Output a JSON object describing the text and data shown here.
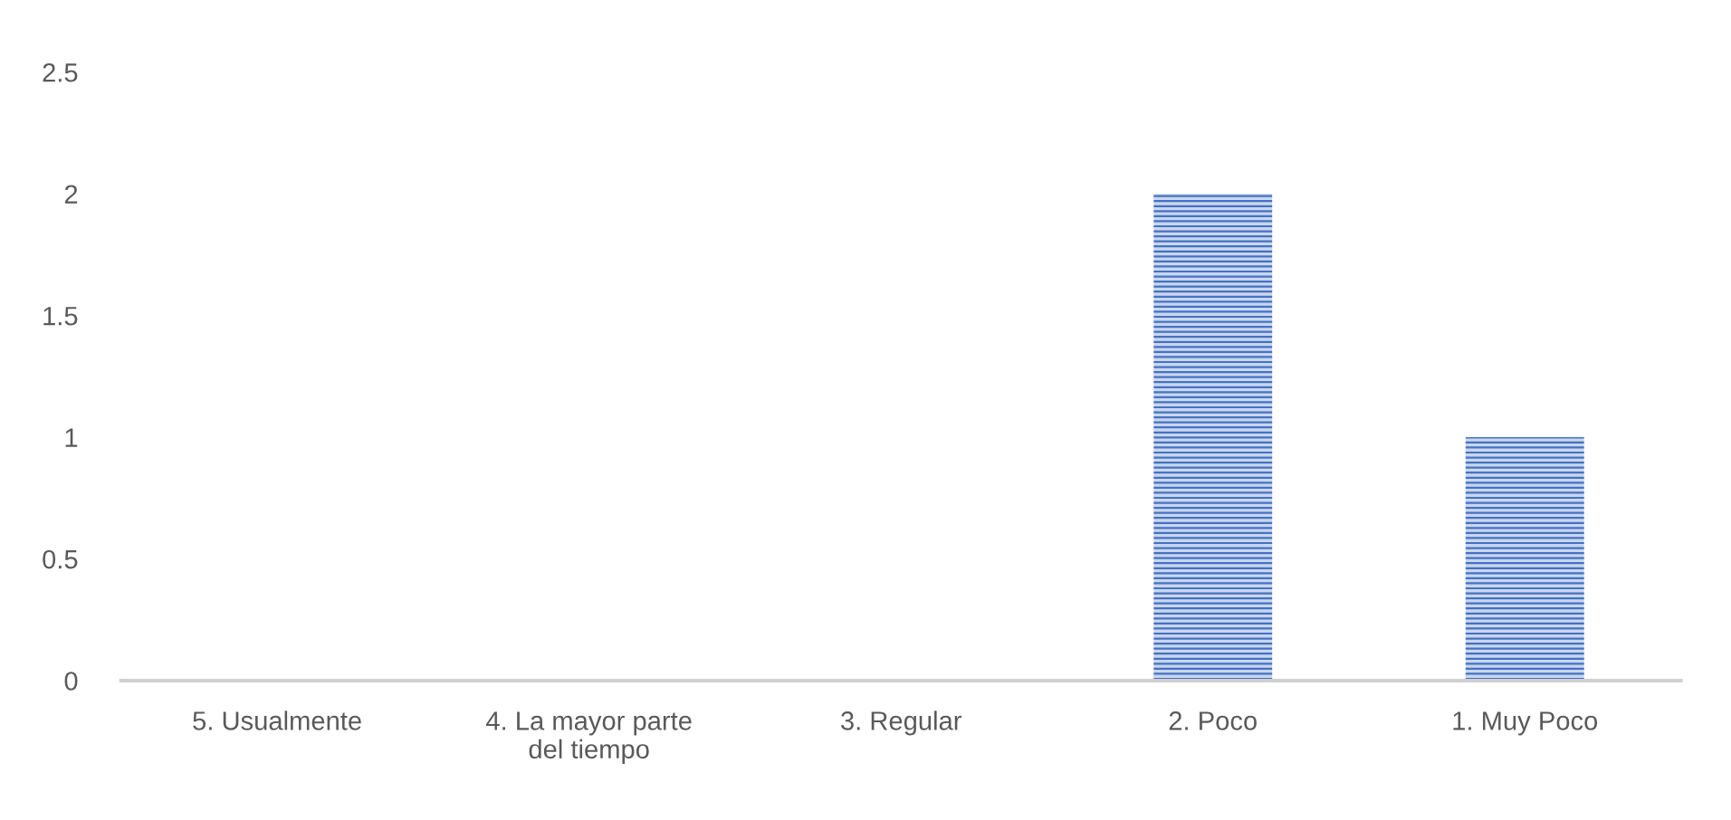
{
  "chart_data": {
    "type": "bar",
    "categories": [
      "5. Usualmente",
      "4. La mayor parte\ndel tiempo",
      "3. Regular",
      "2. Poco",
      "1. Muy Poco"
    ],
    "values": [
      0,
      0,
      0,
      2,
      1
    ],
    "color": "#4472c4",
    "ylim": [
      0,
      2.5
    ],
    "yticks": [
      0,
      0.5,
      1,
      1.5,
      2,
      2.5
    ]
  }
}
